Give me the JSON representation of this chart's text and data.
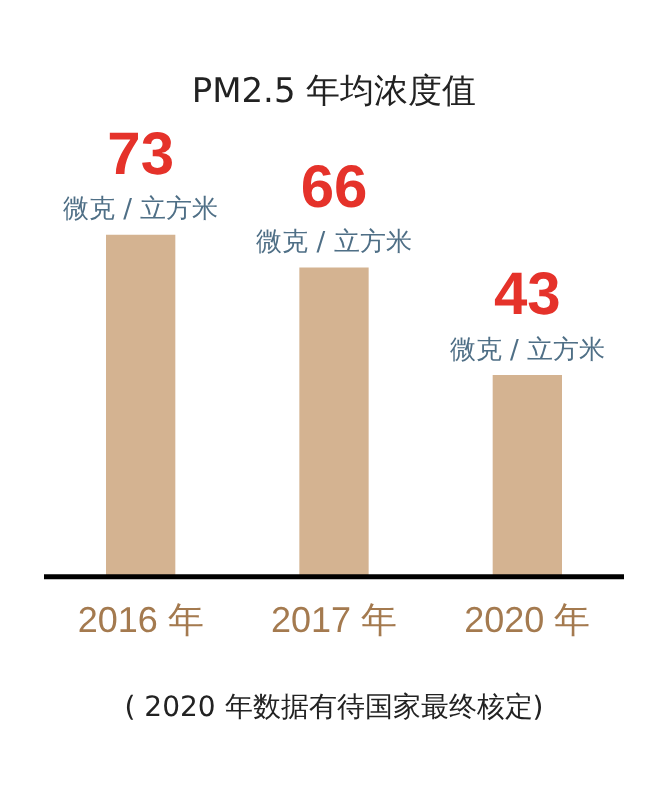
{
  "chart_data": {
    "type": "bar",
    "title": "PM2.5 年均浓度值",
    "categories": [
      "2016 年",
      "2017 年",
      "2020 年"
    ],
    "values": [
      73,
      66,
      43
    ],
    "color": "#d4b391",
    "data_labels": true,
    "grid": false,
    "legend": false,
    "tick_labels": "x",
    "annotations": [
      {
        "text": "微克 / 立方米",
        "x": "2016 年",
        "y": 73
      },
      {
        "text": "微克 / 立方米",
        "x": "2017 年",
        "y": 66
      },
      {
        "text": "微克 / 立方米",
        "x": "2020 年",
        "y": 43
      },
      "( 2020 年数据有待国家最终核定)"
    ]
  }
}
